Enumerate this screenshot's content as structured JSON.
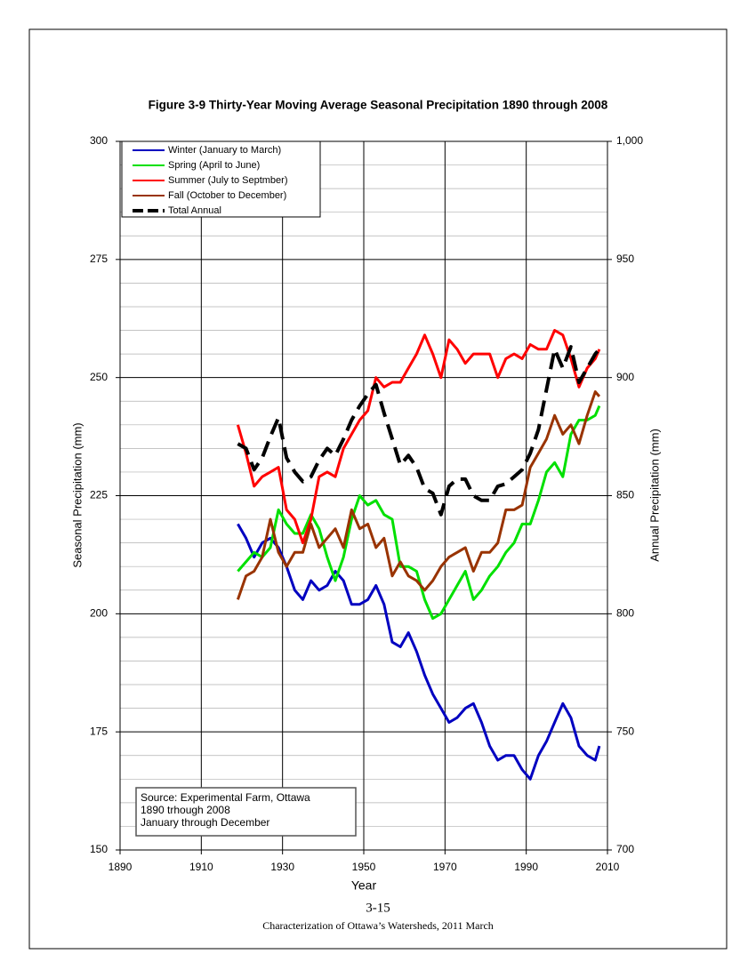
{
  "chart_data": {
    "type": "line",
    "title": "Figure 3-9  Thirty-Year Moving Average Seasonal Precipitation 1890 through 2008",
    "x_label": "Year",
    "y_label": "Seasonal Precipitation (mm)",
    "y2_label": "Annual Precipitation (mm)",
    "xlim": [
      1890,
      2010
    ],
    "xticks": [
      1890,
      1910,
      1930,
      1950,
      1970,
      1990,
      2010
    ],
    "ylim": [
      150,
      300
    ],
    "yticks": [
      150,
      175,
      200,
      225,
      250,
      275,
      300
    ],
    "yminorticks": [
      155,
      160,
      165,
      170,
      180,
      185,
      190,
      195,
      205,
      210,
      215,
      220,
      230,
      235,
      240,
      245,
      255,
      260,
      265,
      270,
      280,
      285,
      290,
      295
    ],
    "y2lim": [
      700,
      1000
    ],
    "y2ticks": [
      700,
      750,
      800,
      850,
      900,
      950,
      {
        "value": 1000,
        "label": "1,000"
      }
    ],
    "grid": true,
    "legend": "upper left",
    "source_note": [
      "Source: Experimental Farm,  Ottawa",
      "1890 trhough 2008",
      "January through December"
    ],
    "x": [
      1919,
      1921,
      1923,
      1925,
      1927,
      1929,
      1931,
      1933,
      1935,
      1937,
      1939,
      1941,
      1943,
      1945,
      1947,
      1949,
      1951,
      1953,
      1955,
      1957,
      1959,
      1961,
      1963,
      1965,
      1967,
      1969,
      1971,
      1973,
      1975,
      1977,
      1979,
      1981,
      1983,
      1985,
      1987,
      1989,
      1991,
      1993,
      1995,
      1997,
      1999,
      2001,
      2003,
      2005,
      2007,
      2008
    ],
    "series": [
      {
        "name": "Winter (January to March)",
        "color": "#0000c0",
        "values": [
          219,
          216,
          212,
          215,
          216,
          214,
          210,
          205,
          203,
          207,
          205,
          206,
          209,
          207,
          202,
          202,
          203,
          206,
          202,
          194,
          193,
          196,
          192,
          187,
          183,
          180,
          177,
          178,
          180,
          181,
          177,
          172,
          169,
          170,
          170,
          167,
          165,
          170,
          173,
          177,
          181,
          178,
          172,
          170,
          169,
          172
        ]
      },
      {
        "name": "Spring (April to June)",
        "color": "#00e000",
        "values": [
          209,
          211,
          213,
          212,
          214,
          222,
          219,
          217,
          217,
          221,
          218,
          212,
          207,
          212,
          220,
          225,
          223,
          224,
          221,
          220,
          210,
          210,
          209,
          203,
          199,
          200,
          203,
          206,
          209,
          203,
          205,
          208,
          210,
          213,
          215,
          219,
          219,
          224,
          230,
          232,
          229,
          238,
          241,
          241,
          242,
          244
        ]
      },
      {
        "name": "Summer (July to Septmber)",
        "color": "#ff0000",
        "values": [
          240,
          234,
          227,
          229,
          230,
          231,
          222,
          220,
          215,
          220,
          229,
          230,
          229,
          235,
          238,
          241,
          243,
          250,
          248,
          249,
          249,
          252,
          255,
          259,
          255,
          250,
          258,
          256,
          253,
          255,
          255,
          255,
          250,
          254,
          255,
          254,
          257,
          256,
          256,
          260,
          259,
          254,
          248,
          252,
          254,
          256
        ]
      },
      {
        "name": "Fall (October to December)",
        "color": "#993300",
        "values": [
          203,
          208,
          209,
          212,
          220,
          213,
          210,
          213,
          213,
          219,
          214,
          216,
          218,
          214,
          222,
          218,
          219,
          214,
          216,
          208,
          211,
          208,
          207,
          205,
          207,
          210,
          212,
          213,
          214,
          209,
          213,
          213,
          215,
          222,
          222,
          223,
          231,
          234,
          237,
          242,
          238,
          240,
          236,
          242,
          247,
          246
        ]
      },
      {
        "name": "Total Annual",
        "color": "#000000",
        "dashed": true,
        "axis": "y2",
        "values": [
          872,
          870,
          861,
          866,
          875,
          883,
          866,
          860,
          856,
          858,
          865,
          870,
          867,
          874,
          882,
          888,
          893,
          897,
          885,
          874,
          863,
          867,
          862,
          853,
          851,
          842,
          854,
          857,
          857,
          850,
          848,
          848,
          854,
          855,
          858,
          861,
          868,
          878,
          895,
          912,
          904,
          913,
          898,
          904,
          910,
          912
        ]
      }
    ]
  },
  "page_number": "3-15",
  "footer": "Characterization of Ottawa’s Watersheds, 2011 March"
}
